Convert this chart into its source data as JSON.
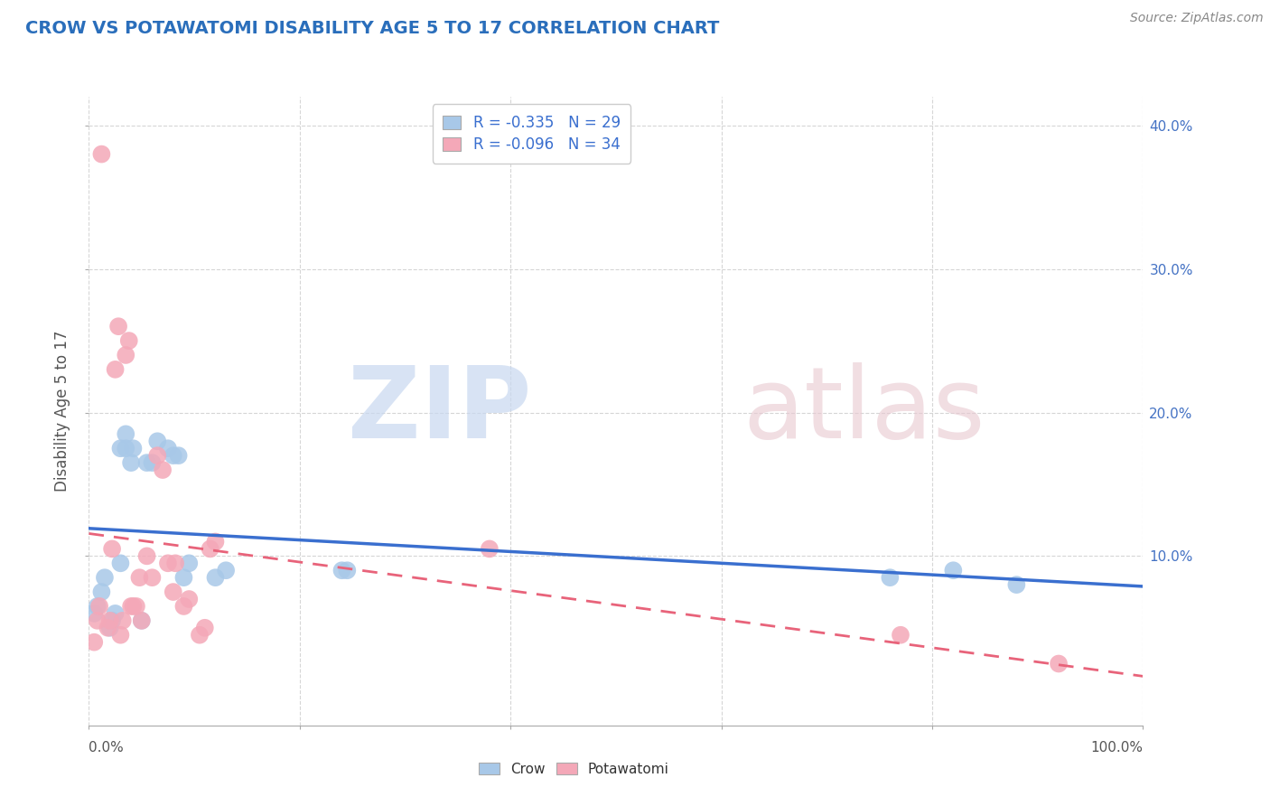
{
  "title": "CROW VS POTAWATOMI DISABILITY AGE 5 TO 17 CORRELATION CHART",
  "source_text": "Source: ZipAtlas.com",
  "ylabel": "Disability Age 5 to 17",
  "xlim": [
    0.0,
    1.0
  ],
  "ylim": [
    -0.018,
    0.42
  ],
  "crow_color": "#a8c8e8",
  "potawatomi_color": "#f4a8b8",
  "crow_line_color": "#3a6fcf",
  "potawatomi_line_color": "#e8637a",
  "crow_R": -0.335,
  "crow_N": 29,
  "potawatomi_R": -0.096,
  "potawatomi_N": 34,
  "background_color": "#ffffff",
  "grid_color": "#cccccc",
  "crow_x": [
    0.005,
    0.008,
    0.012,
    0.015,
    0.02,
    0.022,
    0.025,
    0.03,
    0.03,
    0.035,
    0.035,
    0.04,
    0.042,
    0.05,
    0.055,
    0.06,
    0.065,
    0.075,
    0.08,
    0.085,
    0.09,
    0.095,
    0.12,
    0.13,
    0.24,
    0.245,
    0.76,
    0.82,
    0.88
  ],
  "crow_y": [
    0.06,
    0.065,
    0.075,
    0.085,
    0.05,
    0.055,
    0.06,
    0.095,
    0.175,
    0.175,
    0.185,
    0.165,
    0.175,
    0.055,
    0.165,
    0.165,
    0.18,
    0.175,
    0.17,
    0.17,
    0.085,
    0.095,
    0.085,
    0.09,
    0.09,
    0.09,
    0.085,
    0.09,
    0.08
  ],
  "potawatomi_x": [
    0.005,
    0.008,
    0.01,
    0.012,
    0.018,
    0.02,
    0.022,
    0.025,
    0.028,
    0.03,
    0.032,
    0.035,
    0.038,
    0.04,
    0.042,
    0.045,
    0.048,
    0.05,
    0.055,
    0.06,
    0.065,
    0.07,
    0.075,
    0.08,
    0.082,
    0.09,
    0.095,
    0.105,
    0.11,
    0.115,
    0.12,
    0.38,
    0.77,
    0.92
  ],
  "potawatomi_y": [
    0.04,
    0.055,
    0.065,
    0.38,
    0.05,
    0.055,
    0.105,
    0.23,
    0.26,
    0.045,
    0.055,
    0.24,
    0.25,
    0.065,
    0.065,
    0.065,
    0.085,
    0.055,
    0.1,
    0.085,
    0.17,
    0.16,
    0.095,
    0.075,
    0.095,
    0.065,
    0.07,
    0.045,
    0.05,
    0.105,
    0.11,
    0.105,
    0.045,
    0.025
  ]
}
